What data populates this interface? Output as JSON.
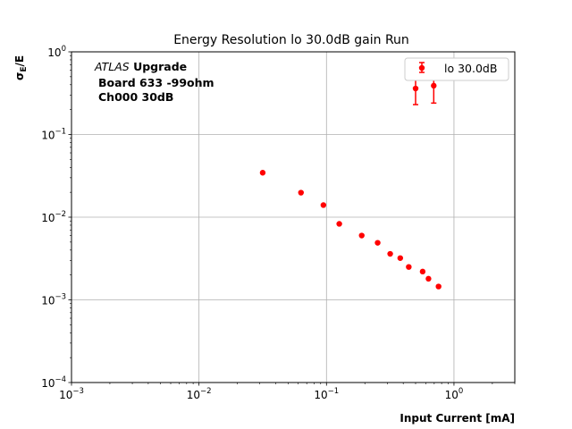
{
  "chart_data": {
    "type": "scatter",
    "title": "Energy Resolution lo 30.0dB gain Run",
    "xlabel": "Input Current [mA]",
    "ylabel_main": "σ",
    "ylabel_sub": "E",
    "ylabel_tail": "/E",
    "xscale": "log",
    "yscale": "log",
    "xlim": [
      0.001,
      3
    ],
    "ylim": [
      0.0001,
      1
    ],
    "grid": true,
    "legend_position": "top-right",
    "x_ticks": [
      {
        "value": 0.001,
        "base": "10",
        "exp": "−3"
      },
      {
        "value": 0.01,
        "base": "10",
        "exp": "−2"
      },
      {
        "value": 0.1,
        "base": "10",
        "exp": "−1"
      },
      {
        "value": 1,
        "base": "10",
        "exp": "0"
      }
    ],
    "y_ticks": [
      {
        "value": 0.0001,
        "base": "10",
        "exp": "−4"
      },
      {
        "value": 0.001,
        "base": "10",
        "exp": "−3"
      },
      {
        "value": 0.01,
        "base": "10",
        "exp": "−2"
      },
      {
        "value": 0.1,
        "base": "10",
        "exp": "−1"
      },
      {
        "value": 1,
        "base": "10",
        "exp": "0"
      }
    ],
    "annotation": {
      "atlas": "ATLAS",
      "upgrade": " Upgrade",
      "line2": "Board 633 -99ohm",
      "line3": "Ch000 30dB"
    },
    "series": [
      {
        "name": "lo 30.0dB",
        "color": "#ff0000",
        "points": [
          {
            "x": 0.0316,
            "y": 0.0345
          },
          {
            "x": 0.0631,
            "y": 0.0198
          },
          {
            "x": 0.0946,
            "y": 0.014
          },
          {
            "x": 0.126,
            "y": 0.0083
          },
          {
            "x": 0.189,
            "y": 0.006
          },
          {
            "x": 0.252,
            "y": 0.0049
          },
          {
            "x": 0.316,
            "y": 0.0036
          },
          {
            "x": 0.379,
            "y": 0.0032
          },
          {
            "x": 0.442,
            "y": 0.0025
          },
          {
            "x": 0.568,
            "y": 0.0022
          },
          {
            "x": 0.631,
            "y": 0.0018
          },
          {
            "x": 0.757,
            "y": 0.00145
          },
          {
            "x": 0.5,
            "y": 0.36,
            "err_low": 0.13,
            "err_high": 0.12
          },
          {
            "x": 0.694,
            "y": 0.39,
            "err_low": 0.15,
            "err_high": 0.15
          }
        ]
      }
    ]
  }
}
